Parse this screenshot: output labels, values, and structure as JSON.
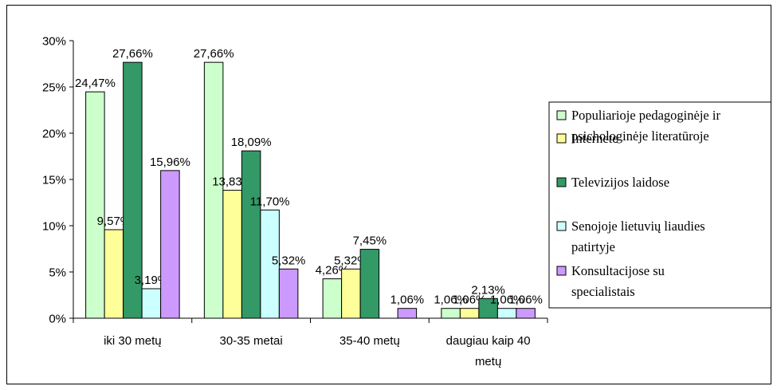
{
  "chart_data": {
    "type": "bar",
    "title": "",
    "xlabel": "",
    "ylabel": "",
    "ylim": [
      0,
      30
    ],
    "yticks": [
      "0%",
      "5%",
      "10%",
      "15%",
      "20%",
      "25%",
      "30%"
    ],
    "ytick_values": [
      0,
      5,
      10,
      15,
      20,
      25,
      30
    ],
    "grid": false,
    "legend_position": "right",
    "categories": [
      [
        "iki 30 metų"
      ],
      [
        "30-35 metai"
      ],
      [
        "35-40 metų"
      ],
      [
        "daugiau kaip 40",
        "metų"
      ]
    ],
    "series": [
      {
        "name_lines": [
          "Populiarioje pedagoginėje ir",
          "psichologinėje literatūroje"
        ],
        "color": "#ccffcc",
        "values": [
          24.47,
          27.66,
          4.26,
          1.06
        ],
        "labels": [
          "24,47%",
          "27,66%",
          "4,26%",
          "1,06%"
        ]
      },
      {
        "name_lines": [
          "Internete"
        ],
        "color": "#ffff99",
        "values": [
          9.57,
          13.83,
          5.32,
          1.06
        ],
        "labels": [
          "9,57%",
          "13,83%",
          "5,32%",
          "1,06%"
        ]
      },
      {
        "name_lines": [
          "Televizijos laidose"
        ],
        "color": "#339966",
        "values": [
          27.66,
          18.09,
          7.45,
          2.13
        ],
        "labels": [
          "27,66%",
          "18,09%",
          "7,45%",
          "2,13%"
        ]
      },
      {
        "name_lines": [
          "Senojoje lietuvių liaudies",
          "patirtyje"
        ],
        "color": "#ccffff",
        "values": [
          3.19,
          11.7,
          0,
          1.06
        ],
        "labels": [
          "3,19%",
          "11,70%",
          "",
          "1,06%"
        ]
      },
      {
        "name_lines": [
          "Konsultacijose su",
          "specialistais"
        ],
        "color": "#cc99ff",
        "values": [
          15.96,
          5.32,
          1.06,
          1.06
        ],
        "labels": [
          "15,96%",
          "5,32%",
          "1,06%",
          "1,06%"
        ]
      }
    ]
  }
}
